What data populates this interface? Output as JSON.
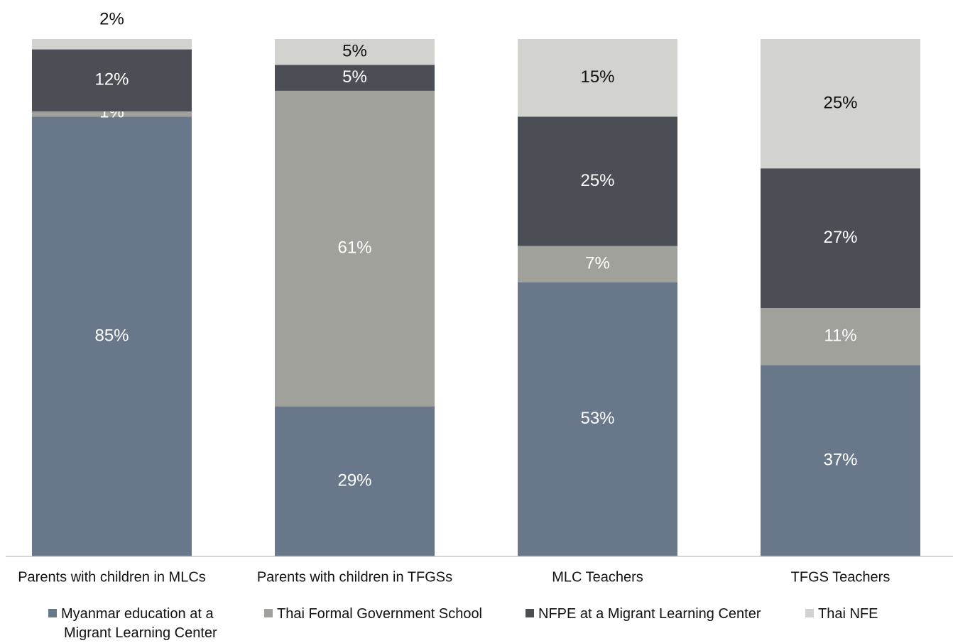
{
  "chart_data": {
    "type": "bar",
    "stacked": true,
    "normalized_percent": true,
    "categories": [
      "Parents with children in MLCs",
      "Parents with children in TFGSs",
      "MLC Teachers",
      "TFGS Teachers"
    ],
    "series": [
      {
        "name": "Myanmar education at a Migrant Learning Center",
        "name_lines": [
          "Myanmar education at a",
          "Migrant Learning Center"
        ],
        "color": "#68788a",
        "values": [
          85,
          29,
          53,
          37
        ],
        "labels": [
          "85%",
          "29%",
          "53%",
          "37%"
        ]
      },
      {
        "name": "Thai Formal Government School",
        "name_lines": [
          "Thai Formal Government School"
        ],
        "color": "#a0a19b",
        "values": [
          1,
          61,
          7,
          11
        ],
        "labels": [
          "1%",
          "61%",
          "7%",
          "11%"
        ]
      },
      {
        "name": "NFPE at a Migrant Learning Center",
        "name_lines": [
          "NFPE at a Migrant Learning Center"
        ],
        "color": "#4b4f55",
        "values": [
          12,
          5,
          25,
          27
        ],
        "labels": [
          "12%",
          "5%",
          "25%",
          "27%"
        ]
      },
      {
        "name": "Thai NFE",
        "name_lines": [
          "Thai NFE"
        ],
        "color": "#d2d3ce",
        "values": [
          2,
          5,
          15,
          25
        ],
        "labels": [
          "2%",
          "5%",
          "15%",
          "25%"
        ]
      }
    ],
    "title": "",
    "xlabel": "",
    "ylabel": "",
    "ylim": [
      0,
      100
    ],
    "grid": false,
    "legend_position": "bottom"
  }
}
